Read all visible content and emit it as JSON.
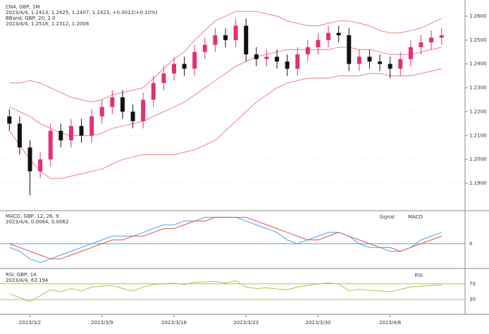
{
  "chart_data": [
    {
      "type": "candlestick",
      "title": "CN4, GBP, 1M",
      "annotations": [
        "2023/4/4, 1.2413, 1.2425, 1.2407, 1.2423, +0.0012(+0.10%)",
        "BBand, GBP, 20, 2.0",
        "2023/4/4, 1.2516, 1.2312, 1.2006"
      ],
      "categories": [
        null,
        null,
        "2023/3/2",
        null,
        null,
        null,
        null,
        null,
        null,
        "2023/3/9",
        null,
        null,
        null,
        null,
        null,
        null,
        "2023/3/16",
        null,
        null,
        null,
        null,
        null,
        null,
        "2023/3/23",
        null,
        null,
        null,
        null,
        null,
        null,
        "2023/3/30",
        null,
        null,
        null,
        null,
        null,
        null,
        "2023/4/6",
        null,
        null,
        null,
        null,
        null
      ],
      "candles": [
        [
          1.218,
          1.221,
          1.212,
          1.215
        ],
        [
          1.215,
          1.218,
          1.202,
          1.205
        ],
        [
          1.205,
          1.208,
          1.185,
          1.195
        ],
        [
          1.195,
          1.203,
          1.192,
          1.2
        ],
        [
          1.2,
          1.215,
          1.197,
          1.212
        ],
        [
          1.212,
          1.215,
          1.205,
          1.208
        ],
        [
          1.208,
          1.217,
          1.205,
          1.214
        ],
        [
          1.214,
          1.217,
          1.207,
          1.21
        ],
        [
          1.21,
          1.221,
          1.207,
          1.218
        ],
        [
          1.218,
          1.225,
          1.215,
          1.222
        ],
        [
          1.222,
          1.229,
          1.219,
          1.226
        ],
        [
          1.226,
          1.229,
          1.217,
          1.22
        ],
        [
          1.22,
          1.223,
          1.213,
          1.216
        ],
        [
          1.216,
          1.228,
          1.213,
          1.225
        ],
        [
          1.225,
          1.235,
          1.222,
          1.232
        ],
        [
          1.232,
          1.239,
          1.229,
          1.236
        ],
        [
          1.236,
          1.243,
          1.233,
          1.24
        ],
        [
          1.24,
          1.243,
          1.235,
          1.238
        ],
        [
          1.238,
          1.248,
          1.235,
          1.245
        ],
        [
          1.245,
          1.251,
          1.242,
          1.248
        ],
        [
          1.248,
          1.255,
          1.245,
          1.252
        ],
        [
          1.252,
          1.255,
          1.247,
          1.25
        ],
        [
          1.25,
          1.259,
          1.247,
          1.256
        ],
        [
          1.256,
          1.259,
          1.241,
          1.244
        ],
        [
          1.244,
          1.247,
          1.239,
          1.242
        ],
        [
          1.242,
          1.246,
          1.239,
          1.243
        ],
        [
          1.243,
          1.246,
          1.238,
          1.241
        ],
        [
          1.241,
          1.244,
          1.235,
          1.238
        ],
        [
          1.238,
          1.247,
          1.235,
          1.244
        ],
        [
          1.244,
          1.25,
          1.241,
          1.247
        ],
        [
          1.247,
          1.253,
          1.244,
          1.25
        ],
        [
          1.25,
          1.256,
          1.247,
          1.253
        ],
        [
          1.253,
          1.256,
          1.249,
          1.252
        ],
        [
          1.252,
          1.255,
          1.237,
          1.24
        ],
        [
          1.24,
          1.246,
          1.237,
          1.243
        ],
        [
          1.243,
          1.246,
          1.238,
          1.241
        ],
        [
          1.241,
          1.244,
          1.237,
          1.24
        ],
        [
          1.24,
          1.243,
          1.234,
          1.238
        ],
        [
          1.238,
          1.245,
          1.235,
          1.242
        ],
        [
          1.242,
          1.25,
          1.239,
          1.247
        ],
        [
          1.247,
          1.252,
          1.244,
          1.249
        ],
        [
          1.249,
          1.254,
          1.246,
          1.251
        ],
        [
          1.251,
          1.255,
          1.248,
          1.252
        ]
      ],
      "up_color": "#e0307a",
      "down_color": "#111111",
      "series": [
        {
          "name": "upper",
          "color": "#f08080",
          "values": [
            1.232,
            1.232,
            1.233,
            1.232,
            1.23,
            1.228,
            1.226,
            1.225,
            1.224,
            1.225,
            1.227,
            1.228,
            1.229,
            1.23,
            1.234,
            1.238,
            1.242,
            1.245,
            1.25,
            1.254,
            1.258,
            1.26,
            1.262,
            1.262,
            1.262,
            1.261,
            1.26,
            1.258,
            1.257,
            1.256,
            1.256,
            1.257,
            1.258,
            1.258,
            1.257,
            1.256,
            1.254,
            1.253,
            1.253,
            1.254,
            1.255,
            1.257,
            1.259
          ]
        },
        {
          "name": "middle",
          "color": "#f08080",
          "values": [
            1.222,
            1.22,
            1.218,
            1.215,
            1.213,
            1.211,
            1.21,
            1.21,
            1.21,
            1.211,
            1.213,
            1.214,
            1.215,
            1.216,
            1.218,
            1.22,
            1.222,
            1.224,
            1.227,
            1.23,
            1.233,
            1.236,
            1.239,
            1.241,
            1.243,
            1.244,
            1.245,
            1.246,
            1.246,
            1.246,
            1.246,
            1.246,
            1.247,
            1.247,
            1.246,
            1.246,
            1.245,
            1.244,
            1.244,
            1.244,
            1.245,
            1.246,
            1.247
          ]
        },
        {
          "name": "lower",
          "color": "#f08080",
          "values": [
            1.212,
            1.206,
            1.2,
            1.195,
            1.192,
            1.192,
            1.193,
            1.194,
            1.195,
            1.196,
            1.198,
            1.2,
            1.201,
            1.202,
            1.202,
            1.202,
            1.202,
            1.203,
            1.204,
            1.206,
            1.208,
            1.212,
            1.216,
            1.22,
            1.224,
            1.227,
            1.23,
            1.232,
            1.233,
            1.234,
            1.234,
            1.234,
            1.235,
            1.235,
            1.235,
            1.236,
            1.236,
            1.235,
            1.235,
            1.235,
            1.236,
            1.237,
            1.238
          ]
        }
      ],
      "ylim": [
        1.18,
        1.265
      ],
      "yticks": [
        {
          "value": 1.19,
          "label": "1.1900"
        },
        {
          "value": 1.2,
          "label": "1.2000"
        },
        {
          "value": 1.21,
          "label": "1.2100"
        },
        {
          "value": 1.22,
          "label": "1.2200"
        },
        {
          "value": 1.23,
          "label": "1.2300"
        },
        {
          "value": 1.24,
          "label": "1.2400"
        },
        {
          "value": 1.25,
          "label": "1.2500"
        },
        {
          "value": 1.26,
          "label": "1.2600"
        }
      ],
      "grid": true
    },
    {
      "type": "line",
      "title": "MACD, GBP, 12, 26, 9",
      "annotations": [
        "2023/4/4, 0.0064, 0.0062"
      ],
      "series": [
        {
          "name": "MACD",
          "color": "#4aa3e8",
          "values": [
            -0.001,
            -0.002,
            -0.004,
            -0.005,
            -0.004,
            -0.003,
            -0.002,
            -0.001,
            0,
            0.001,
            0.002,
            0.002,
            0.002,
            0.003,
            0.004,
            0.005,
            0.005,
            0.006,
            0.006,
            0.007,
            0.007,
            0.007,
            0.007,
            0.006,
            0.005,
            0.004,
            0.003,
            0.001,
            0,
            0.001,
            0.002,
            0.003,
            0.003,
            0.002,
            0,
            -0.001,
            -0.001,
            -0.002,
            -0.002,
            -0.001,
            0.001,
            0.002,
            0.003
          ]
        },
        {
          "name": "Signal",
          "color": "#e05050",
          "values": [
            0,
            -0.001,
            -0.002,
            -0.003,
            -0.004,
            -0.004,
            -0.003,
            -0.002,
            -0.001,
            0,
            0.001,
            0.001,
            0.002,
            0.002,
            0.003,
            0.004,
            0.004,
            0.005,
            0.006,
            0.006,
            0.007,
            0.007,
            0.007,
            0.007,
            0.006,
            0.005,
            0.004,
            0.003,
            0.002,
            0.001,
            0.001,
            0.002,
            0.003,
            0.002,
            0.001,
            0,
            -0.001,
            -0.001,
            -0.002,
            -0.001,
            0,
            0.001,
            0.002
          ]
        }
      ],
      "ylim": [
        -0.006,
        0.008
      ],
      "yticks": [
        0
      ],
      "tick_color": "#4aa3e8"
    },
    {
      "type": "line",
      "title": "RSI, GBP, 14",
      "annotations": [
        "2023/4/4, 63.194"
      ],
      "series": [
        {
          "name": "RSI",
          "color": "#9ccc50",
          "values": [
            45,
            35,
            25,
            40,
            55,
            50,
            58,
            52,
            62,
            64,
            66,
            58,
            52,
            62,
            68,
            70,
            72,
            68,
            74,
            75,
            76,
            72,
            78,
            62,
            58,
            60,
            57,
            55,
            62,
            66,
            70,
            72,
            70,
            52,
            56,
            54,
            52,
            50,
            56,
            62,
            64,
            66,
            67
          ]
        }
      ],
      "ylim": [
        0,
        100
      ],
      "yticks": [
        30,
        70
      ],
      "tick_color": "#9ccc50"
    }
  ]
}
